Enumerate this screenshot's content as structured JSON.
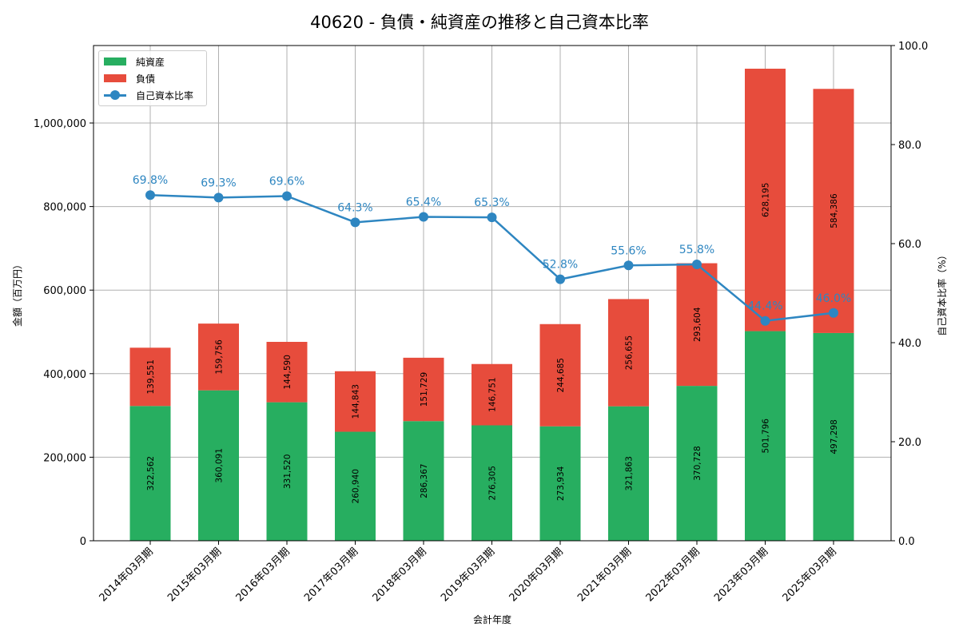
{
  "title": "40620 - 負債・純資産の推移と自己資本比率",
  "legend": {
    "items": [
      {
        "label": "純資産",
        "color": "#27ae60",
        "type": "bar"
      },
      {
        "label": "負債",
        "color": "#e74c3c",
        "type": "bar"
      },
      {
        "label": "自己資本比率",
        "color": "#2e86c1",
        "type": "line"
      }
    ]
  },
  "axes": {
    "xlabel": "会計年度",
    "ylabel_left": "金額（百万円）",
    "ylabel_right": "自己資本比率（%）",
    "left_ticks": [
      "0",
      "200,000",
      "400,000",
      "600,000",
      "800,000",
      "1,000,000"
    ],
    "right_ticks": [
      "0.0",
      "20.0",
      "40.0",
      "60.0",
      "80.0",
      "100.0"
    ]
  },
  "chart_data": {
    "type": "bar",
    "stacked": true,
    "title": "40620 - 負債・純資産の推移と自己資本比率",
    "xlabel": "会計年度",
    "ylabel": "金額（百万円）",
    "ylabel_right": "自己資本比率（%）",
    "ylim": [
      0,
      1185000
    ],
    "ylim_right": [
      0,
      100
    ],
    "grid": true,
    "legend_position": "upper left",
    "categories": [
      "2014年03月期",
      "2015年03月期",
      "2016年03月期",
      "2017年03月期",
      "2018年03月期",
      "2019年03月期",
      "2020年03月期",
      "2021年03月期",
      "2022年03月期",
      "2023年03月期",
      "2025年03月期"
    ],
    "series": [
      {
        "name": "純資産",
        "type": "bar",
        "color": "#27ae60",
        "axis": "left",
        "values": [
          322562,
          360091,
          331520,
          260940,
          286367,
          276305,
          273934,
          321863,
          370728,
          501796,
          497298
        ],
        "labels": [
          "322,562",
          "360,091",
          "331,520",
          "260,940",
          "286,367",
          "276,305",
          "273,934",
          "321,863",
          "370,728",
          "501,796",
          "497,298"
        ]
      },
      {
        "name": "負債",
        "type": "bar",
        "color": "#e74c3c",
        "axis": "left",
        "values": [
          139551,
          159756,
          144590,
          144843,
          151729,
          146751,
          244685,
          256655,
          293604,
          628195,
          584386
        ],
        "labels": [
          "139,551",
          "159,756",
          "144,590",
          "144,843",
          "151,729",
          "146,751",
          "244,685",
          "256,655",
          "293,604",
          "628,195",
          "584,386"
        ]
      },
      {
        "name": "自己資本比率",
        "type": "line",
        "color": "#2e86c1",
        "axis": "right",
        "values": [
          69.8,
          69.3,
          69.6,
          64.3,
          65.4,
          65.3,
          52.8,
          55.6,
          55.8,
          44.4,
          46.0
        ],
        "labels": [
          "69.8%",
          "69.3%",
          "69.6%",
          "64.3%",
          "65.4%",
          "65.3%",
          "52.8%",
          "55.6%",
          "55.8%",
          "44.4%",
          "46.0%"
        ]
      }
    ]
  }
}
